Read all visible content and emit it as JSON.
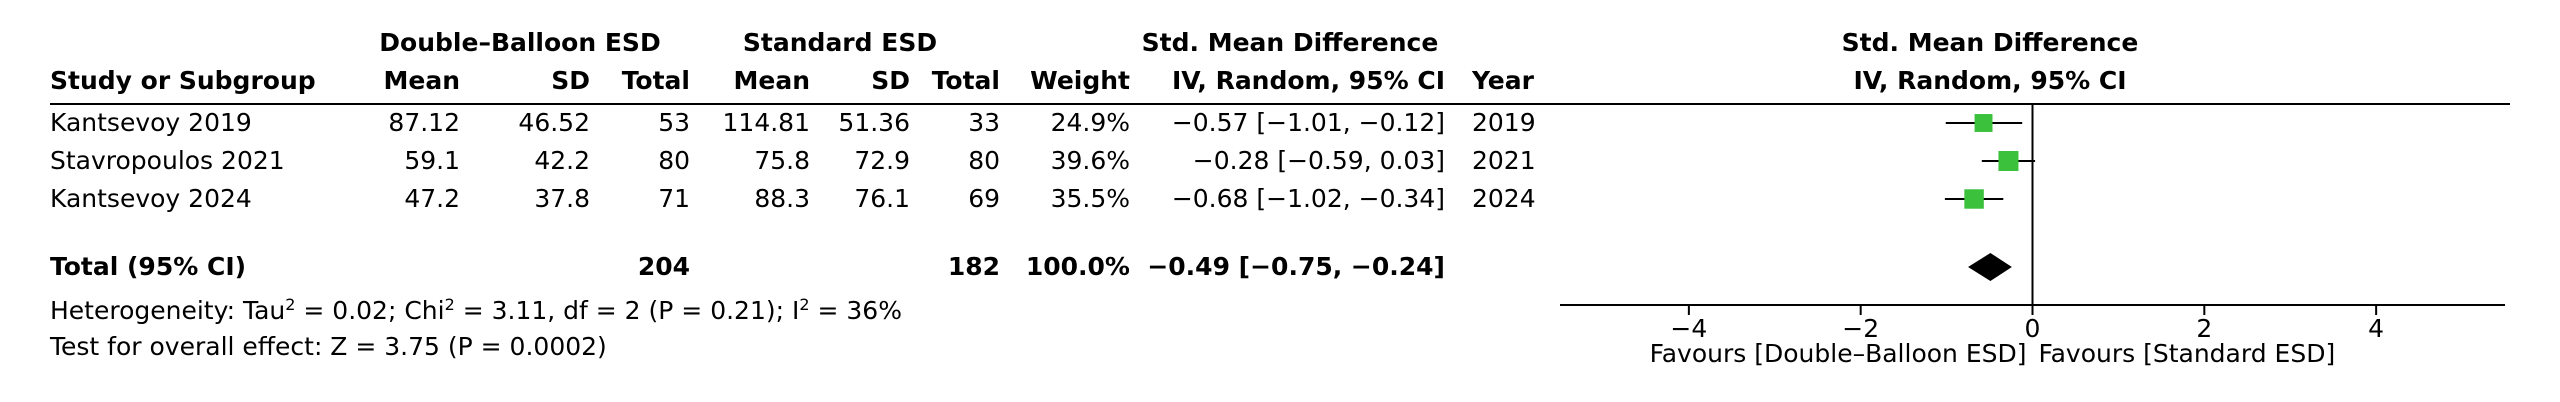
{
  "headers": {
    "group_experimental": "Double–Balloon ESD",
    "group_control": "Standard ESD",
    "effect_title": "Std. Mean Difference",
    "effect_method": "IV, Random, 95% CI",
    "plot_title": "Std. Mean Difference",
    "plot_method": "IV, Random, 95% CI",
    "study": "Study or Subgroup",
    "exp_mean": "Mean",
    "exp_sd": "SD",
    "exp_total": "Total",
    "ctl_mean": "Mean",
    "ctl_sd": "SD",
    "ctl_total": "Total",
    "weight": "Weight",
    "year": "Year"
  },
  "studies": [
    {
      "name": "Kantsevoy 2019",
      "exp_mean": "87.12",
      "exp_sd": "46.52",
      "exp_total": "53",
      "ctl_mean": "114.81",
      "ctl_sd": "51.36",
      "ctl_total": "33",
      "weight": "24.9%",
      "ci_text": "−0.57 [−1.01, −0.12]",
      "year": "2019"
    },
    {
      "name": "Stavropoulos 2021",
      "exp_mean": "59.1",
      "exp_sd": "42.2",
      "exp_total": "80",
      "ctl_mean": "75.8",
      "ctl_sd": "72.9",
      "ctl_total": "80",
      "weight": "39.6%",
      "ci_text": "−0.28 [−0.59, 0.03]",
      "year": "2021"
    },
    {
      "name": "Kantsevoy 2024",
      "exp_mean": "47.2",
      "exp_sd": "37.8",
      "exp_total": "71",
      "ctl_mean": "88.3",
      "ctl_sd": "76.1",
      "ctl_total": "69",
      "weight": "35.5%",
      "ci_text": "−0.68 [−1.02, −0.34]",
      "year": "2024"
    }
  ],
  "total": {
    "label": "Total (95% CI)",
    "exp_total": "204",
    "ctl_total": "182",
    "weight": "100.0%",
    "ci_text": "−0.49 [−0.75, −0.24]"
  },
  "footnotes": {
    "het_prefix": "Heterogeneity: Tau",
    "het_tau_exp": "2",
    "het_mid": " = 0.02; Chi",
    "het_chi_exp": "2",
    "het_rest": " = 3.11, df = 2 (P = 0.21); I",
    "het_i_exp": "2",
    "het_end": " = 36%",
    "overall": "Test for overall effect: Z = 3.75 (P = 0.0002)"
  },
  "chart_data": {
    "type": "forest",
    "title": "Std. Mean Difference",
    "subtitle": "IV, Random, 95% CI",
    "xlim": [
      -5.5,
      5.5
    ],
    "xticks": [
      -4,
      -2,
      0,
      2,
      4
    ],
    "xtick_labels": [
      "−4",
      "−2",
      "0",
      "2",
      "4"
    ],
    "favours_left": "Favours [Double–Balloon ESD]",
    "favours_right": "Favours [Standard ESD]",
    "studies": [
      {
        "name": "Kantsevoy 2019",
        "estimate": -0.57,
        "lower": -1.01,
        "upper": -0.12,
        "weight": 24.9
      },
      {
        "name": "Stavropoulos 2021",
        "estimate": -0.28,
        "lower": -0.59,
        "upper": 0.03,
        "weight": 39.6
      },
      {
        "name": "Kantsevoy 2024",
        "estimate": -0.68,
        "lower": -1.02,
        "upper": -0.34,
        "weight": 35.5
      }
    ],
    "pooled": {
      "estimate": -0.49,
      "lower": -0.75,
      "upper": -0.24
    },
    "colors": {
      "study_marker": "#3cc13c",
      "pooled_marker": "#000000",
      "lines": "#000000"
    }
  }
}
